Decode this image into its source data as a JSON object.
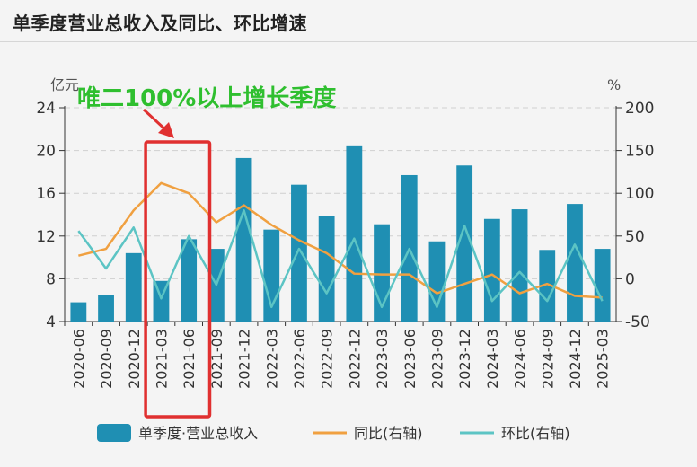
{
  "header": {
    "title": "单季度营业总收入及同比、环比增速"
  },
  "chart_data": {
    "type": "bar+line",
    "categories": [
      "2020-06",
      "2020-09",
      "2020-12",
      "2021-03",
      "2021-06",
      "2021-09",
      "2021-12",
      "2022-03",
      "2022-06",
      "2022-09",
      "2022-12",
      "2023-03",
      "2023-06",
      "2023-09",
      "2023-12",
      "2024-03",
      "2024-06",
      "2024-09",
      "2024-12",
      "2025-03"
    ],
    "bar_series": {
      "name": "单季度·营业总收入",
      "axis": "left",
      "color": "#1f8fb3",
      "values": [
        5.8,
        6.5,
        10.4,
        7.8,
        11.7,
        10.8,
        19.3,
        12.6,
        16.8,
        13.9,
        20.4,
        13.1,
        17.7,
        11.5,
        18.6,
        13.6,
        14.5,
        10.7,
        15.0,
        10.8
      ]
    },
    "line_series": [
      {
        "name": "同比(右轴)",
        "axis": "right",
        "color": "#f0a040",
        "values": [
          27,
          35,
          80,
          112,
          100,
          66,
          86,
          63,
          45,
          30,
          6,
          5,
          5,
          -17,
          -6,
          5,
          -17,
          -6,
          -20,
          -22
        ]
      },
      {
        "name": "环比(右轴)",
        "axis": "right",
        "color": "#5cc4c4",
        "values": [
          56,
          12,
          60,
          -23,
          50,
          -7,
          80,
          -33,
          35,
          -17,
          47,
          -33,
          35,
          -33,
          62,
          -26,
          8,
          -26,
          40,
          -26
        ]
      }
    ],
    "left_axis": {
      "unit": "亿元",
      "ylim": [
        4,
        24
      ],
      "ticks": [
        4,
        8,
        12,
        16,
        20,
        24
      ]
    },
    "right_axis": {
      "unit": "%",
      "ylim": [
        -50,
        200
      ],
      "ticks": [
        -50,
        0,
        50,
        100,
        150,
        200
      ]
    },
    "legend": [
      "单季度·营业总收入",
      "同比(右轴)",
      "环比(右轴)"
    ],
    "legend_position": "bottom",
    "annotation": {
      "text": "唯二100%以上增长季度",
      "color": "#2fbf2f",
      "highlight_categories": [
        "2021-03",
        "2021-06"
      ],
      "highlight_color": "#e03030"
    },
    "grid": true
  }
}
